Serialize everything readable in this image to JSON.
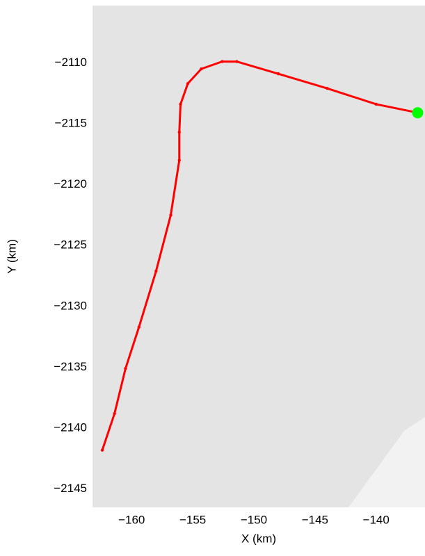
{
  "chart_data": {
    "type": "line",
    "xlabel": "X (km)",
    "ylabel": "Y (km)",
    "xlim": [
      -163.2,
      -136.0
    ],
    "ylim": [
      -2146.5,
      -2105.3
    ],
    "xticks": [
      {
        "value": -160,
        "label": "−160"
      },
      {
        "value": -155,
        "label": "−155"
      },
      {
        "value": -150,
        "label": "−150"
      },
      {
        "value": -145,
        "label": "−145"
      },
      {
        "value": -140,
        "label": "−140"
      }
    ],
    "yticks": [
      {
        "value": -2110,
        "label": "−2110"
      },
      {
        "value": -2115,
        "label": "−2115"
      },
      {
        "value": -2120,
        "label": "−2120"
      },
      {
        "value": -2125,
        "label": "−2125"
      },
      {
        "value": -2130,
        "label": "−2130"
      },
      {
        "value": -2135,
        "label": "−2135"
      },
      {
        "value": -2140,
        "label": "−2140"
      },
      {
        "value": -2145,
        "label": "−2145"
      }
    ],
    "background": "#e4e4e4",
    "series": [
      {
        "color": "#ff0000",
        "x": [
          -162.4,
          -161.4,
          -160.5,
          -159.4,
          -158.0,
          -156.8,
          -156.1,
          -156.1,
          -156.0,
          -155.4,
          -154.3,
          -152.6,
          -151.4,
          -148.0,
          -144.0,
          -140.0,
          -136.6
        ],
        "values": [
          -2141.8,
          -2138.8,
          -2135.1,
          -2131.7,
          -2127.1,
          -2122.5,
          -2118.0,
          -2115.7,
          -2113.4,
          -2111.7,
          -2110.5,
          -2109.9,
          -2109.9,
          -2110.9,
          -2112.1,
          -2113.4,
          -2114.1
        ]
      },
      {
        "color": "#00ff00",
        "x": [
          -136.6
        ],
        "values": [
          -2114.1
        ]
      }
    ]
  }
}
